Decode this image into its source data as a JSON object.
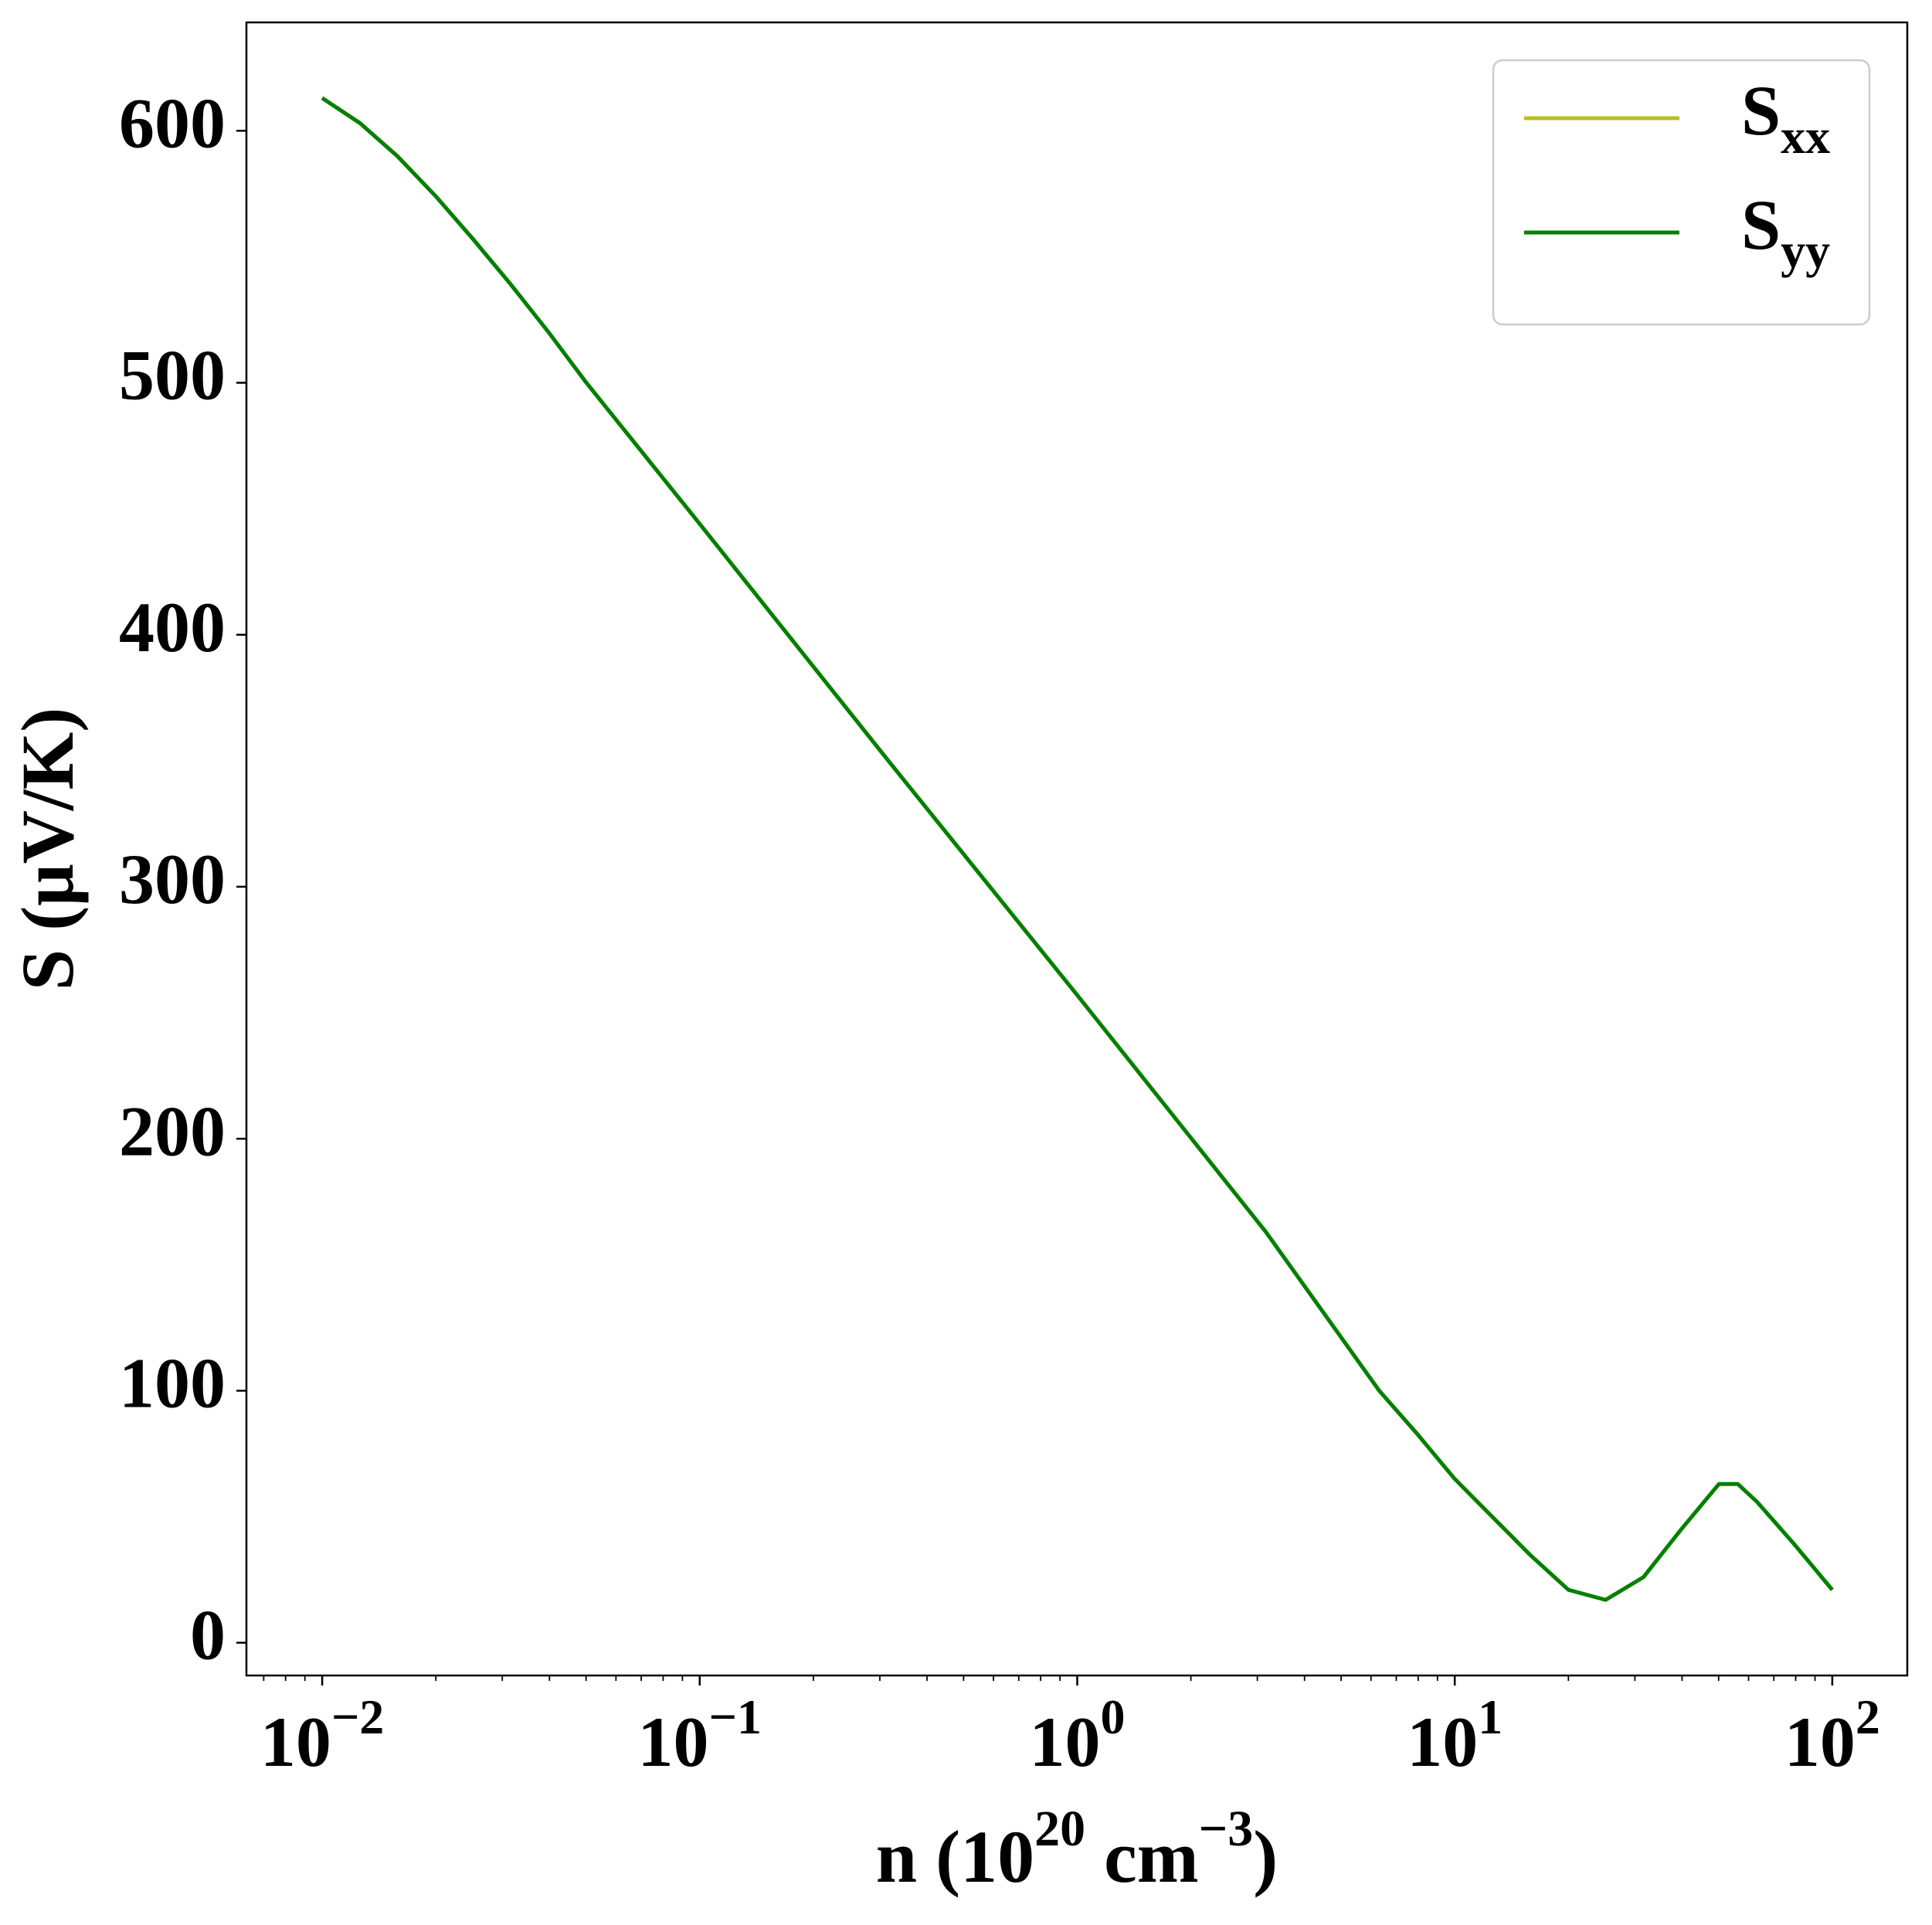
{
  "chart_data": {
    "type": "line",
    "x_label": {
      "text": "n (10",
      "superscript": "20",
      "unit": " cm",
      "unit_superscript": "−3",
      "close": ")"
    },
    "y_label": "S (μV/K)",
    "x_scale": "log",
    "x": [
      0.01,
      0.0126,
      0.0158,
      0.02,
      0.0251,
      0.0316,
      0.0398,
      0.0501,
      0.1,
      0.316,
      1,
      3.16,
      6.31,
      7.94,
      10,
      15.8,
      20,
      25.1,
      31.6,
      39.8,
      50.1,
      56.2,
      63.1,
      79.4,
      100
    ],
    "series": [
      {
        "name": "S",
        "subscript": "xx",
        "color": "#bcbd22",
        "values": [
          613,
          603,
          590,
          574,
          557,
          539,
          520,
          500,
          444,
          350,
          257,
          163,
          100,
          83,
          65,
          35,
          21,
          17,
          26,
          45,
          63,
          63,
          56,
          39,
          21
        ]
      },
      {
        "name": "S",
        "subscript": "yy",
        "color": "#008000",
        "values": [
          613,
          603,
          590,
          574,
          557,
          539,
          520,
          500,
          444,
          350,
          257,
          163,
          100,
          83,
          65,
          35,
          21,
          17,
          26,
          45,
          63,
          63,
          56,
          39,
          21
        ]
      }
    ],
    "xlim": [
      0.0063,
      158
    ],
    "ylim": [
      -13,
      643
    ],
    "xticks": [
      {
        "value": 0.01,
        "label": "10",
        "exponent": "−2"
      },
      {
        "value": 0.1,
        "label": "10",
        "exponent": "−1"
      },
      {
        "value": 1,
        "label": "10",
        "exponent": "0"
      },
      {
        "value": 10,
        "label": "10",
        "exponent": "1"
      },
      {
        "value": 100,
        "label": "10",
        "exponent": "2"
      }
    ],
    "xminorticks": [
      0.007,
      0.008,
      0.009,
      0.02,
      0.03,
      0.04,
      0.05,
      0.06,
      0.07,
      0.08,
      0.09,
      0.2,
      0.3,
      0.4,
      0.5,
      0.6,
      0.7,
      0.8,
      0.9,
      2,
      3,
      4,
      5,
      6,
      7,
      8,
      9,
      20,
      30,
      40,
      50,
      60,
      70,
      80,
      90
    ],
    "yticks": [
      0,
      100,
      200,
      300,
      400,
      500,
      600
    ],
    "grid": false,
    "legend": "upper right"
  }
}
